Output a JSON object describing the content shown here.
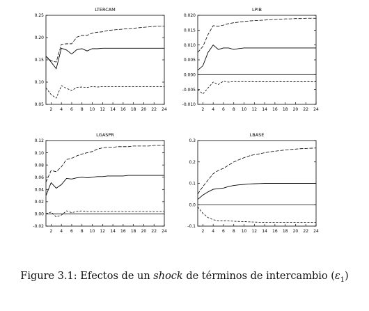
{
  "chart_data": [
    {
      "type": "line",
      "title": "LTERCAM",
      "x": [
        1,
        2,
        3,
        4,
        5,
        6,
        7,
        8,
        9,
        10,
        11,
        12,
        13,
        14,
        15,
        16,
        17,
        18,
        19,
        20,
        21,
        22,
        23,
        24
      ],
      "xticks": [
        2,
        4,
        6,
        8,
        10,
        12,
        14,
        16,
        18,
        20,
        22,
        24
      ],
      "ylim": [
        0.05,
        0.25
      ],
      "yticks": [
        0.05,
        0.1,
        0.15,
        0.2,
        0.25
      ],
      "ytick_labels": [
        "0.05",
        "0.10",
        "0.15",
        "0.20",
        "0.25"
      ],
      "zero_line": false,
      "series": [
        {
          "style": "solid",
          "values": [
            0.158,
            0.145,
            0.13,
            0.176,
            0.172,
            0.163,
            0.173,
            0.175,
            0.17,
            0.175,
            0.175,
            0.176,
            0.176,
            0.176,
            0.176,
            0.176,
            0.176,
            0.176,
            0.176,
            0.176,
            0.176,
            0.176,
            0.176,
            0.176
          ]
        },
        {
          "style": "dashed",
          "values": [
            0.158,
            0.148,
            0.145,
            0.185,
            0.186,
            0.186,
            0.201,
            0.205,
            0.205,
            0.21,
            0.212,
            0.213,
            0.216,
            0.217,
            0.218,
            0.219,
            0.22,
            0.221,
            0.222,
            0.223,
            0.224,
            0.225,
            0.226,
            0.226
          ]
        },
        {
          "style": "dashed",
          "values": [
            0.087,
            0.072,
            0.064,
            0.092,
            0.086,
            0.081,
            0.088,
            0.089,
            0.088,
            0.09,
            0.089,
            0.09,
            0.09,
            0.09,
            0.09,
            0.09,
            0.09,
            0.09,
            0.09,
            0.09,
            0.09,
            0.09,
            0.09,
            0.09
          ]
        }
      ]
    },
    {
      "type": "line",
      "title": "LPIB",
      "x": [
        1,
        2,
        3,
        4,
        5,
        6,
        7,
        8,
        9,
        10,
        11,
        12,
        13,
        14,
        15,
        16,
        17,
        18,
        19,
        20,
        21,
        22,
        23,
        24
      ],
      "xticks": [
        2,
        4,
        6,
        8,
        10,
        12,
        14,
        16,
        18,
        20,
        22,
        24
      ],
      "ylim": [
        -0.01,
        0.02
      ],
      "yticks": [
        -0.01,
        -0.005,
        0.0,
        0.005,
        0.01,
        0.015,
        0.02
      ],
      "ytick_labels": [
        "-0.010",
        "-0.005",
        "0.000",
        "0.005",
        "0.010",
        "0.015",
        "0.020"
      ],
      "zero_line": true,
      "series": [
        {
          "style": "solid",
          "values": [
            0.0015,
            0.003,
            0.0075,
            0.01,
            0.0085,
            0.009,
            0.009,
            0.0085,
            0.0088,
            0.009,
            0.009,
            0.009,
            0.009,
            0.009,
            0.009,
            0.009,
            0.009,
            0.009,
            0.009,
            0.009,
            0.009,
            0.009,
            0.009,
            0.009
          ]
        },
        {
          "style": "dashed",
          "values": [
            0.0075,
            0.0095,
            0.0135,
            0.0165,
            0.0163,
            0.0167,
            0.0172,
            0.0175,
            0.0177,
            0.0179,
            0.0181,
            0.0182,
            0.0183,
            0.0184,
            0.0185,
            0.0186,
            0.0187,
            0.0188,
            0.0188,
            0.0189,
            0.0189,
            0.019,
            0.019,
            0.019
          ]
        },
        {
          "style": "dashed",
          "values": [
            -0.005,
            -0.0065,
            -0.0045,
            -0.0025,
            -0.0033,
            -0.0022,
            -0.0025,
            -0.0023,
            -0.0024,
            -0.0023,
            -0.0024,
            -0.0024,
            -0.0024,
            -0.0024,
            -0.0024,
            -0.0024,
            -0.0024,
            -0.0024,
            -0.0024,
            -0.0024,
            -0.0024,
            -0.0024,
            -0.0024,
            -0.0024
          ]
        }
      ]
    },
    {
      "type": "line",
      "title": "LGASPR",
      "x": [
        1,
        2,
        3,
        4,
        5,
        6,
        7,
        8,
        9,
        10,
        11,
        12,
        13,
        14,
        15,
        16,
        17,
        18,
        19,
        20,
        21,
        22,
        23,
        24
      ],
      "xticks": [
        2,
        4,
        6,
        8,
        10,
        12,
        14,
        16,
        18,
        20,
        22,
        24
      ],
      "ylim": [
        -0.02,
        0.12
      ],
      "yticks": [
        -0.02,
        0.0,
        0.02,
        0.04,
        0.06,
        0.08,
        0.1,
        0.12
      ],
      "ytick_labels": [
        "-0.02",
        "0.00",
        "0.02",
        "0.04",
        "0.06",
        "0.08",
        "0.10",
        "0.12"
      ],
      "zero_line": true,
      "series": [
        {
          "style": "solid",
          "values": [
            0.03,
            0.051,
            0.042,
            0.048,
            0.058,
            0.057,
            0.059,
            0.06,
            0.059,
            0.06,
            0.061,
            0.061,
            0.062,
            0.062,
            0.062,
            0.062,
            0.063,
            0.063,
            0.063,
            0.063,
            0.063,
            0.063,
            0.063,
            0.063
          ]
        },
        {
          "style": "dashed",
          "values": [
            0.052,
            0.071,
            0.069,
            0.077,
            0.089,
            0.091,
            0.095,
            0.098,
            0.1,
            0.102,
            0.106,
            0.108,
            0.109,
            0.109,
            0.11,
            0.11,
            0.11,
            0.111,
            0.111,
            0.111,
            0.111,
            0.112,
            0.112,
            0.112
          ]
        },
        {
          "style": "dashed",
          "values": [
            0.0,
            0.003,
            -0.005,
            -0.002,
            0.005,
            0.002,
            0.004,
            0.005,
            0.004,
            0.004,
            0.004,
            0.004,
            0.004,
            0.004,
            0.004,
            0.004,
            0.004,
            0.004,
            0.004,
            0.004,
            0.004,
            0.004,
            0.004,
            0.004
          ]
        }
      ]
    },
    {
      "type": "line",
      "title": "LBASE",
      "x": [
        1,
        2,
        3,
        4,
        5,
        6,
        7,
        8,
        9,
        10,
        11,
        12,
        13,
        14,
        15,
        16,
        17,
        18,
        19,
        20,
        21,
        22,
        23,
        24
      ],
      "xticks": [
        2,
        4,
        6,
        8,
        10,
        12,
        14,
        16,
        18,
        20,
        22,
        24
      ],
      "ylim": [
        -0.1,
        0.3
      ],
      "yticks": [
        -0.1,
        0.0,
        0.1,
        0.2,
        0.3
      ],
      "ytick_labels": [
        "-0.1",
        "0.0",
        "0.1",
        "0.2",
        "0.3"
      ],
      "zero_line": true,
      "series": [
        {
          "style": "solid",
          "values": [
            0.025,
            0.045,
            0.06,
            0.072,
            0.075,
            0.078,
            0.085,
            0.09,
            0.093,
            0.095,
            0.097,
            0.098,
            0.099,
            0.1,
            0.1,
            0.1,
            0.1,
            0.1,
            0.1,
            0.1,
            0.1,
            0.1,
            0.1,
            0.1
          ]
        },
        {
          "style": "dashed",
          "values": [
            0.05,
            0.085,
            0.115,
            0.145,
            0.16,
            0.17,
            0.185,
            0.2,
            0.21,
            0.22,
            0.228,
            0.234,
            0.238,
            0.243,
            0.247,
            0.25,
            0.253,
            0.256,
            0.258,
            0.26,
            0.262,
            0.263,
            0.264,
            0.265
          ]
        },
        {
          "style": "dashed",
          "values": [
            -0.01,
            -0.04,
            -0.06,
            -0.07,
            -0.075,
            -0.075,
            -0.076,
            -0.077,
            -0.078,
            -0.079,
            -0.08,
            -0.081,
            -0.082,
            -0.082,
            -0.082,
            -0.082,
            -0.082,
            -0.082,
            -0.082,
            -0.082,
            -0.082,
            -0.082,
            -0.082,
            -0.082
          ]
        }
      ]
    }
  ],
  "caption": {
    "prefix": "Figure 3.1:  Efectos de un",
    "shock": "shock",
    "middle": "de términos de intercambio (",
    "epsilon": "ε",
    "subscript": "1",
    "suffix": ")"
  }
}
